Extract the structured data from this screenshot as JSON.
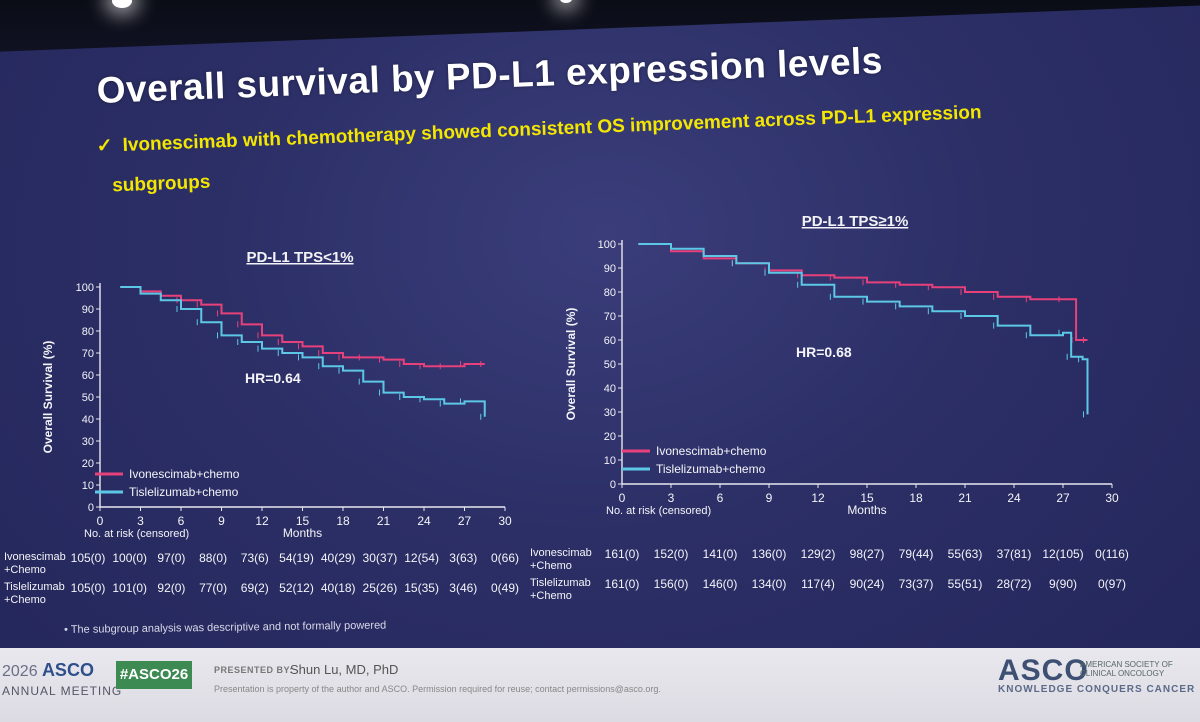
{
  "slide": {
    "title": "Overall survival by PD-L1 expression levels",
    "bullet_mark": "✓",
    "bullet_line1": "Ivonescimab with chemotherapy showed consistent OS improvement across PD-L1 expression",
    "bullet_line2": "subgroups",
    "footnote": "• The subgroup analysis was descriptive and not formally powered",
    "colors": {
      "ivonescimab": "#e8407a",
      "tislelizumab": "#5cc8e6",
      "background": "#2c2f66",
      "bullet": "#f3e600"
    }
  },
  "footer": {
    "year": "2026",
    "asco": "ASCO",
    "annual_meeting": "ANNUAL MEETING",
    "hashtag": "#ASCO26",
    "presented_by": "PRESENTED BY:",
    "presenter": "Shun Lu, MD, PhD",
    "property_note": "Presentation is property of the author and ASCO. Permission required for reuse; contact permissions@asco.org.",
    "asco_right": "ASCO",
    "society": "AMERICAN SOCIETY OF CLINICAL ONCOLOGY",
    "tagline": "KNOWLEDGE CONQUERS CANCER"
  },
  "chart_data": [
    {
      "type": "line",
      "title": "PD-L1 TPS<1%",
      "xlabel": "Months",
      "ylabel": "Overall Survival (%)",
      "xlim": [
        0,
        30
      ],
      "ylim": [
        0,
        100
      ],
      "xticks": [
        0,
        3,
        6,
        9,
        12,
        15,
        18,
        21,
        24,
        27,
        30
      ],
      "yticks": [
        0,
        10,
        20,
        30,
        40,
        50,
        60,
        70,
        80,
        90,
        100
      ],
      "annotation": "HR=0.64",
      "legend": [
        "Ivonescimab+chemo",
        "Tislelizumab+chemo"
      ],
      "legend_position": "bottom-left",
      "series": [
        {
          "name": "Ivonescimab+chemo",
          "x": [
            1.5,
            3,
            4.5,
            6,
            7.5,
            9,
            10.5,
            12,
            13.5,
            15,
            16.5,
            18,
            19.5,
            21,
            22.5,
            24,
            25.5,
            27,
            28.5
          ],
          "y": [
            100,
            98,
            96,
            94,
            92,
            88,
            83,
            78,
            75,
            73,
            70,
            68,
            68,
            67,
            65,
            64,
            64,
            65,
            65
          ]
        },
        {
          "name": "Tislelizumab+chemo",
          "x": [
            1.5,
            3,
            4.5,
            6,
            7.5,
            9,
            10.5,
            12,
            13.5,
            15,
            16.5,
            18,
            19.5,
            21,
            22.5,
            24,
            25.5,
            27,
            28.5
          ],
          "y": [
            100,
            97,
            94,
            90,
            84,
            78,
            75,
            72,
            70,
            68,
            64,
            62,
            57,
            52,
            50,
            49,
            47,
            48,
            41
          ]
        }
      ],
      "risk_table": {
        "header": "No. at risk (censored)",
        "rows": [
          {
            "label": "Ivonescimab +Chemo",
            "values": [
              "105(0)",
              "100(0)",
              "97(0)",
              "88(0)",
              "73(6)",
              "54(19)",
              "40(29)",
              "30(37)",
              "12(54)",
              "3(63)",
              "0(66)"
            ]
          },
          {
            "label": "Tislelizumab +Chemo",
            "values": [
              "105(0)",
              "101(0)",
              "92(0)",
              "77(0)",
              "69(2)",
              "52(12)",
              "40(18)",
              "25(26)",
              "15(35)",
              "3(46)",
              "0(49)"
            ]
          }
        ]
      }
    },
    {
      "type": "line",
      "title": "PD-L1 TPS≥1%",
      "xlabel": "Months",
      "ylabel": "Overall Survival (%)",
      "xlim": [
        0,
        30
      ],
      "ylim": [
        0,
        100
      ],
      "xticks": [
        0,
        3,
        6,
        9,
        12,
        15,
        18,
        21,
        24,
        27,
        30
      ],
      "yticks": [
        0,
        10,
        20,
        30,
        40,
        50,
        60,
        70,
        80,
        90,
        100
      ],
      "annotation": "HR=0.68",
      "legend": [
        "Ivonescimab+chemo",
        "Tislelizumab+chemo"
      ],
      "legend_position": "bottom-left",
      "series": [
        {
          "name": "Ivonescimab+chemo",
          "x": [
            1,
            3,
            5,
            7,
            9,
            11,
            13,
            15,
            17,
            19,
            21,
            23,
            25,
            27,
            27.8,
            28.5
          ],
          "y": [
            100,
            97,
            94,
            92,
            89,
            87,
            86,
            84,
            83,
            82,
            80,
            78,
            77,
            77,
            60,
            60
          ]
        },
        {
          "name": "Tislelizumab+chemo",
          "x": [
            1,
            3,
            5,
            7,
            9,
            11,
            13,
            15,
            17,
            19,
            21,
            23,
            25,
            27,
            27.5,
            28.2,
            28.5
          ],
          "y": [
            100,
            98,
            95,
            92,
            88,
            83,
            78,
            76,
            74,
            72,
            70,
            66,
            62,
            63,
            53,
            52,
            29
          ]
        }
      ],
      "risk_table": {
        "header": "No. at risk (censored)",
        "rows": [
          {
            "label": "Ivonescimab +Chemo",
            "values": [
              "161(0)",
              "152(0)",
              "141(0)",
              "136(0)",
              "129(2)",
              "98(27)",
              "79(44)",
              "55(63)",
              "37(81)",
              "12(105)",
              "0(116)"
            ]
          },
          {
            "label": "Tislelizumab +Chemo",
            "values": [
              "161(0)",
              "156(0)",
              "146(0)",
              "134(0)",
              "117(4)",
              "90(24)",
              "73(37)",
              "55(51)",
              "28(72)",
              "9(90)",
              "0(97)"
            ]
          }
        ]
      }
    }
  ]
}
